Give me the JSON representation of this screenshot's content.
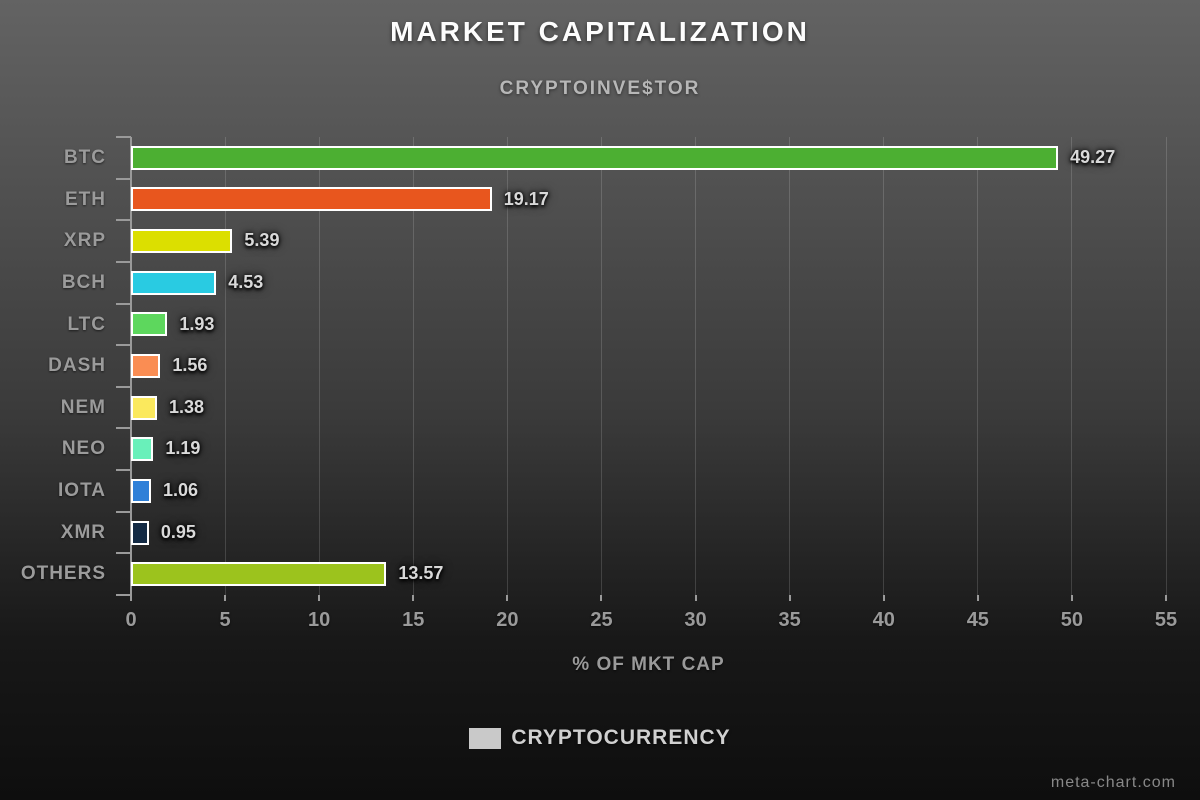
{
  "chart_data": {
    "type": "bar",
    "orientation": "horizontal",
    "title": "MARKET CAPITALIZATION",
    "subtitle": "CRYPTOINVE$TOR",
    "xlabel": "% OF MKT CAP",
    "xlim": [
      0,
      55
    ],
    "xticks": [
      0,
      5,
      10,
      15,
      20,
      25,
      30,
      35,
      40,
      45,
      50,
      55
    ],
    "grid": true,
    "categories": [
      "BTC",
      "ETH",
      "XRP",
      "BCH",
      "LTC",
      "DASH",
      "NEM",
      "NEO",
      "IOTA",
      "XMR",
      "OTHERS"
    ],
    "values": [
      49.27,
      19.17,
      5.39,
      4.53,
      1.93,
      1.56,
      1.38,
      1.19,
      1.06,
      0.95,
      13.57
    ],
    "value_labels": [
      "49.27",
      "19.17",
      "5.39",
      "4.53",
      "1.93",
      "1.56",
      "1.38",
      "1.19",
      "1.06",
      "0.95",
      "13.57"
    ],
    "bar_colors": [
      "#4caf32",
      "#e8561e",
      "#dcdf00",
      "#29cbe2",
      "#5dd75d",
      "#fa8d53",
      "#fbe95d",
      "#69f0ba",
      "#2f80d8",
      "#132a44",
      "#9cc31d"
    ],
    "bar_border_color": "#ffffff",
    "legend": {
      "position": "bottom",
      "label": "CRYPTOCURRENCY",
      "swatch_color": "#c9c9c9"
    }
  },
  "watermark": "meta-chart.com"
}
